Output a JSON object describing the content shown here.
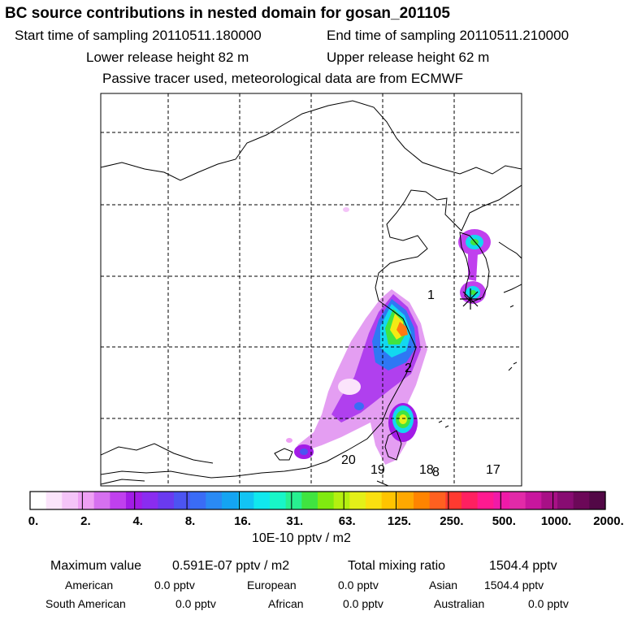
{
  "header": {
    "title": "BC  source contributions in nested domain for gosan_201105",
    "start_time": "Start time of sampling 20110511.180000",
    "end_time": "End time of sampling 20110511.210000",
    "lower_height": "Lower release height   82 m",
    "upper_height": "Upper release height   62 m",
    "note": "Passive tracer used, meteorological data are from ECMWF"
  },
  "chart_data": {
    "type": "heatmap",
    "title": "BC  source contributions in nested domain for gosan_201105",
    "map_labels": [
      "1",
      "2",
      "8",
      "17",
      "18",
      "19",
      "20"
    ],
    "colorbar": {
      "ticks": [
        "0.",
        "2.",
        "4.",
        "8.",
        "16.",
        "31.",
        "63.",
        "125.",
        "250.",
        "500.",
        "1000.",
        "2000."
      ],
      "colors": [
        "#ffffff",
        "#fbe4fb",
        "#f4c4f8",
        "#eea0f4",
        "#d670f0",
        "#c040ee",
        "#a21ce6",
        "#8a2cf0",
        "#6a3af0",
        "#4c54f2",
        "#3a6cf6",
        "#2a8af4",
        "#14a4f2",
        "#12c4f4",
        "#10e8ee",
        "#18f6c8",
        "#28f090",
        "#40e440",
        "#80ea10",
        "#b4f010",
        "#e4f018",
        "#fae010",
        "#ffc400",
        "#ffa800",
        "#ff8400",
        "#ff6020",
        "#ff3a30",
        "#ff2060",
        "#ff1a90",
        "#f01aa8",
        "#e22aa8",
        "#c8169e",
        "#a81086",
        "#880c72",
        "#6c0858",
        "#520846"
      ],
      "unit": "10E-10 pptv / m2"
    }
  },
  "summary": {
    "max_label": "Maximum value",
    "max_value": "0.591E-07 pptv / m2",
    "total_label": "Total mixing ratio",
    "total_value": "1504.4 pptv",
    "rows": [
      [
        {
          "label": "American",
          "value": "0.0 pptv"
        },
        {
          "label": "European",
          "value": "0.0 pptv"
        },
        {
          "label": "Asian",
          "value": "1504.4 pptv"
        }
      ],
      [
        {
          "label": "South American",
          "value": "0.0 pptv"
        },
        {
          "label": "African",
          "value": "0.0 pptv"
        },
        {
          "label": "Australian",
          "value": "0.0 pptv"
        }
      ]
    ]
  }
}
